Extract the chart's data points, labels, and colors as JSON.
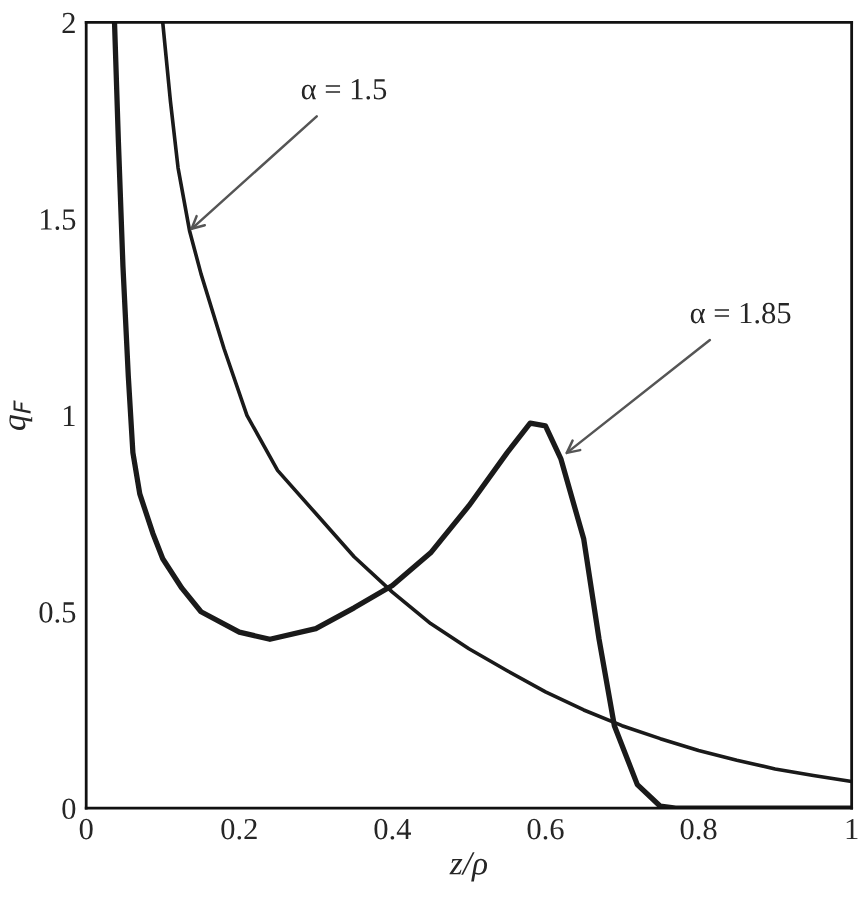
{
  "chart_data": {
    "type": "line",
    "xlabel": "z/ρ",
    "ylabel": "q$_{F}$",
    "xlim": [
      0,
      1
    ],
    "ylim": [
      0,
      2
    ],
    "xticks": [
      0,
      0.2,
      0.4,
      0.6,
      0.8,
      1
    ],
    "yticks": [
      0,
      0.5,
      1,
      1.5,
      2
    ],
    "grid": false,
    "legend": false,
    "marker": "none",
    "line_style": "solid",
    "series": [
      {
        "color": "#1a1a1a",
        "x": [
          0.1,
          0.11,
          0.12,
          0.135,
          0.15,
          0.18,
          0.21,
          0.25,
          0.3,
          0.35,
          0.4,
          0.45,
          0.5,
          0.55,
          0.6,
          0.65,
          0.7,
          0.75,
          0.8,
          0.85,
          0.9,
          0.95,
          1
        ],
        "values": [
          2,
          1.8,
          1.63,
          1.47,
          1.36,
          1.17,
          1.0,
          0.86,
          0.75,
          0.64,
          0.55,
          0.47,
          0.406,
          0.35,
          0.296,
          0.25,
          0.21,
          0.177,
          0.147,
          0.122,
          0.1,
          0.083,
          0.068
        ]
      },
      {
        "color": "#1a1a1a",
        "x": [
          0.037,
          0.042,
          0.048,
          0.055,
          0.061,
          0.07,
          0.087,
          0.1,
          0.125,
          0.15,
          0.2,
          0.24,
          0.3,
          0.35,
          0.4,
          0.45,
          0.5,
          0.55,
          0.58,
          0.6,
          0.62,
          0.65,
          0.67,
          0.69,
          0.72,
          0.75,
          0.77,
          0.85,
          1
        ],
        "values": [
          2,
          1.7,
          1.38,
          1.1,
          0.905,
          0.8,
          0.7,
          0.635,
          0.56,
          0.5,
          0.448,
          0.43,
          0.457,
          0.51,
          0.567,
          0.65,
          0.77,
          0.905,
          0.98,
          0.973,
          0.89,
          0.685,
          0.43,
          0.21,
          0.06,
          0.005,
          0,
          0,
          0
        ]
      }
    ],
    "annotations": [
      {
        "text": "α = 1.5",
        "x": 0.135,
        "y": 1.47
      },
      {
        "text": "α = 1.85",
        "x": 0.625,
        "y": 0.9
      }
    ]
  }
}
